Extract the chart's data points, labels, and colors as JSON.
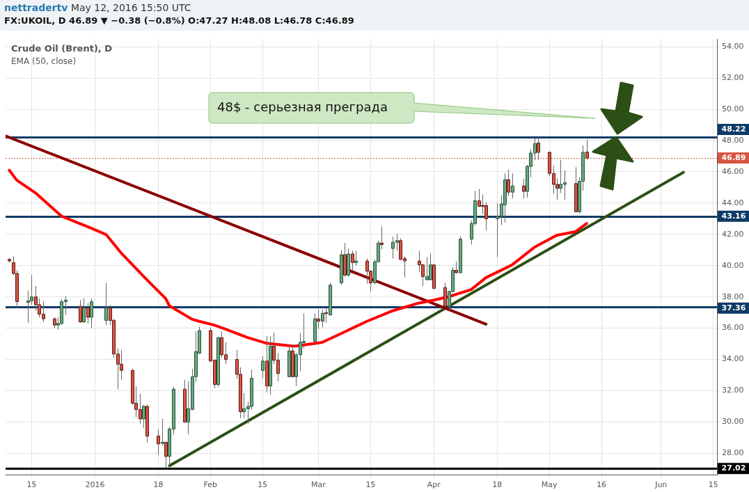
{
  "chart_data": {
    "type": "candlestick",
    "title": "FX:UKOIL, D 46.89 ▼ −0.38 (−0.8%) O:47.27 H:48.08 L:46.78 C:46.89",
    "subtitle": "Crude Oil (Brent), D",
    "annotations": [
      "nettradertv",
      "May 12, 2016 15:50 UTC",
      "EMA (50, close)",
      "48$ - серьезная преграда"
    ],
    "x": [
      "2015-12-09",
      "2015-12-10",
      "2015-12-11",
      "2015-12-14",
      "2015-12-15",
      "2015-12-16",
      "2015-12-17",
      "2015-12-18",
      "2015-12-21",
      "2015-12-22",
      "2015-12-23",
      "2015-12-24",
      "2015-12-28",
      "2015-12-29",
      "2015-12-30",
      "2015-12-31",
      "2016-01-04",
      "2016-01-05",
      "2016-01-06",
      "2016-01-07",
      "2016-01-08",
      "2016-01-11",
      "2016-01-12",
      "2016-01-13",
      "2016-01-14",
      "2016-01-15",
      "2016-01-18",
      "2016-01-19",
      "2016-01-20",
      "2016-01-21",
      "2016-01-22",
      "2016-01-25",
      "2016-01-26",
      "2016-01-27",
      "2016-01-28",
      "2016-01-29",
      "2016-02-01",
      "2016-02-02",
      "2016-02-03",
      "2016-02-04",
      "2016-02-05",
      "2016-02-08",
      "2016-02-09",
      "2016-02-10",
      "2016-02-11",
      "2016-02-12",
      "2016-02-15",
      "2016-02-16",
      "2016-02-17",
      "2016-02-18",
      "2016-02-19",
      "2016-02-22",
      "2016-02-23",
      "2016-02-24",
      "2016-02-25",
      "2016-02-26",
      "2016-02-29",
      "2016-03-01",
      "2016-03-02",
      "2016-03-03",
      "2016-03-04",
      "2016-03-07",
      "2016-03-08",
      "2016-03-09",
      "2016-03-10",
      "2016-03-11",
      "2016-03-14",
      "2016-03-15",
      "2016-03-16",
      "2016-03-17",
      "2016-03-18",
      "2016-03-21",
      "2016-03-22",
      "2016-03-23",
      "2016-03-24",
      "2016-03-28",
      "2016-03-29",
      "2016-03-30",
      "2016-03-31",
      "2016-04-01",
      "2016-04-04",
      "2016-04-05",
      "2016-04-06",
      "2016-04-07",
      "2016-04-08",
      "2016-04-11",
      "2016-04-12",
      "2016-04-13",
      "2016-04-14",
      "2016-04-15",
      "2016-04-18",
      "2016-04-19",
      "2016-04-20",
      "2016-04-21",
      "2016-04-22",
      "2016-04-25",
      "2016-04-26",
      "2016-04-27",
      "2016-04-28",
      "2016-04-29",
      "2016-05-02",
      "2016-05-03",
      "2016-05-04",
      "2016-05-05",
      "2016-05-06",
      "2016-05-09",
      "2016-05-10",
      "2016-05-11",
      "2016-05-12"
    ],
    "ohlc": [
      [
        40.4,
        40.5,
        40.2,
        40.3
      ],
      [
        40.2,
        40.6,
        39.4,
        39.5
      ],
      [
        39.5,
        39.7,
        37.3,
        37.7
      ],
      [
        37.65,
        38.4,
        36.35,
        37.75
      ],
      [
        37.75,
        39.4,
        37.5,
        38.0
      ],
      [
        38.0,
        38.7,
        37.1,
        37.5
      ],
      [
        37.5,
        37.9,
        36.7,
        36.9
      ],
      [
        36.9,
        37.7,
        36.4,
        36.6
      ],
      [
        36.6,
        36.7,
        36.0,
        36.2
      ],
      [
        36.2,
        36.7,
        35.9,
        36.3
      ],
      [
        36.3,
        37.85,
        36.2,
        37.7
      ],
      [
        37.7,
        38.05,
        36.85,
        37.8
      ],
      [
        37.4,
        37.8,
        36.35,
        36.4
      ],
      [
        36.4,
        37.9,
        36.35,
        37.3
      ],
      [
        37.3,
        37.6,
        36.3,
        36.7
      ],
      [
        36.7,
        37.9,
        36.0,
        37.7
      ],
      [
        36.5,
        38.9,
        36.2,
        37.3
      ],
      [
        37.3,
        37.5,
        36.2,
        36.5
      ],
      [
        36.5,
        36.6,
        34.1,
        34.35
      ],
      [
        34.35,
        34.7,
        32.1,
        33.7
      ],
      [
        33.7,
        34.6,
        32.7,
        33.3
      ],
      [
        33.3,
        33.4,
        31.1,
        31.2
      ],
      [
        31.2,
        32.3,
        30.3,
        30.8
      ],
      [
        30.8,
        31.8,
        29.9,
        30.2
      ],
      [
        30.2,
        31.1,
        29.6,
        31.0
      ],
      [
        31.0,
        31.1,
        28.7,
        29.1
      ],
      [
        29.1,
        29.5,
        27.9,
        28.6
      ],
      [
        28.65,
        30.2,
        28.5,
        28.7
      ],
      [
        28.7,
        28.75,
        27.05,
        27.8
      ],
      [
        27.8,
        29.7,
        27.2,
        29.55
      ],
      [
        29.55,
        32.25,
        29.2,
        32.1
      ],
      [
        32.1,
        32.7,
        29.95,
        30.0
      ],
      [
        30.0,
        32.6,
        29.2,
        30.85
      ],
      [
        30.8,
        33.4,
        30.75,
        32.9
      ],
      [
        32.9,
        35.8,
        32.55,
        34.5
      ],
      [
        34.4,
        36.1,
        34.35,
        35.85
      ],
      [
        35.85,
        36.05,
        33.85,
        33.9
      ],
      [
        33.95,
        34.0,
        32.15,
        32.4
      ],
      [
        32.4,
        35.45,
        32.25,
        35.4
      ],
      [
        35.4,
        35.8,
        34.1,
        34.3
      ],
      [
        34.3,
        35.1,
        33.7,
        34.0
      ],
      [
        34.0,
        34.6,
        32.75,
        33.05
      ],
      [
        33.05,
        33.5,
        30.25,
        30.65
      ],
      [
        30.65,
        31.85,
        30.25,
        30.85
      ],
      [
        30.85,
        31.3,
        29.9,
        31.0
      ],
      [
        31.0,
        33.35,
        30.8,
        32.8
      ],
      [
        33.3,
        34.2,
        32.8,
        33.9
      ],
      [
        33.9,
        35.5,
        31.9,
        32.3
      ],
      [
        32.3,
        35.5,
        31.75,
        34.85
      ],
      [
        34.85,
        35.7,
        33.7,
        33.95
      ],
      [
        33.95,
        34.4,
        32.6,
        33.1
      ],
      [
        32.9,
        34.95,
        32.85,
        34.55
      ],
      [
        34.55,
        34.95,
        32.85,
        32.9
      ],
      [
        32.9,
        34.4,
        32.3,
        34.3
      ],
      [
        34.3,
        35.7,
        33.25,
        35.1
      ],
      [
        35.1,
        36.95,
        34.7,
        35.15
      ],
      [
        35.15,
        36.95,
        35.1,
        36.6
      ],
      [
        36.6,
        37.2,
        35.95,
        36.45
      ],
      [
        36.45,
        37.2,
        36.05,
        36.95
      ],
      [
        37.0,
        37.3,
        36.35,
        36.95
      ],
      [
        36.85,
        38.9,
        36.8,
        38.75
      ],
      [
        38.9,
        41.0,
        38.8,
        40.7
      ],
      [
        40.7,
        41.45,
        39.3,
        39.4
      ],
      [
        39.4,
        41.1,
        39.3,
        40.75
      ],
      [
        40.75,
        40.95,
        39.7,
        40.2
      ],
      [
        40.2,
        40.95,
        40.0,
        40.3
      ],
      [
        40.3,
        40.45,
        38.85,
        39.65
      ],
      [
        39.65,
        39.7,
        38.35,
        38.9
      ],
      [
        38.9,
        40.4,
        38.85,
        40.25
      ],
      [
        40.25,
        41.6,
        40.2,
        41.45
      ],
      [
        41.45,
        42.5,
        41.05,
        41.35
      ],
      [
        41.1,
        41.85,
        40.45,
        41.5
      ],
      [
        41.5,
        42.05,
        40.95,
        41.6
      ],
      [
        41.6,
        41.75,
        40.35,
        40.4
      ],
      [
        40.45,
        40.6,
        39.25,
        40.3
      ],
      [
        40.3,
        40.95,
        39.6,
        40.05
      ],
      [
        40.05,
        40.1,
        38.7,
        39.3
      ],
      [
        39.1,
        40.55,
        39.05,
        39.3
      ],
      [
        39.1,
        40.8,
        39.05,
        40.05
      ],
      [
        40.05,
        40.1,
        38.5,
        38.55
      ],
      [
        38.6,
        38.9,
        37.35,
        37.4
      ],
      [
        37.4,
        38.4,
        37.15,
        38.35
      ],
      [
        38.35,
        39.9,
        38.3,
        39.7
      ],
      [
        39.7,
        40.25,
        39.5,
        39.55
      ],
      [
        39.55,
        41.9,
        39.5,
        41.7
      ],
      [
        41.7,
        42.9,
        41.35,
        42.7
      ],
      [
        42.7,
        44.8,
        42.55,
        44.15
      ],
      [
        44.15,
        44.9,
        43.75,
        43.8
      ],
      [
        43.85,
        44.55,
        43.3,
        43.8
      ],
      [
        43.85,
        44.05,
        42.25,
        43.0
      ],
      [
        43.0,
        44.0,
        40.55,
        43.15
      ],
      [
        43.15,
        44.5,
        42.6,
        43.95
      ],
      [
        43.9,
        45.9,
        42.75,
        45.5
      ],
      [
        45.5,
        46.15,
        44.45,
        44.7
      ],
      [
        44.7,
        45.9,
        44.3,
        45.1
      ],
      [
        45.1,
        45.55,
        44.3,
        44.75
      ],
      [
        44.75,
        46.45,
        44.35,
        46.35
      ],
      [
        46.35,
        47.45,
        45.65,
        47.2
      ],
      [
        47.2,
        48.15,
        46.75,
        47.8
      ],
      [
        47.85,
        48.25,
        46.75,
        47.25
      ],
      [
        47.25,
        47.3,
        45.7,
        45.9
      ],
      [
        45.9,
        46.4,
        44.6,
        45.2
      ],
      [
        45.2,
        45.6,
        44.2,
        44.95
      ],
      [
        44.95,
        46.75,
        44.65,
        45.2
      ],
      [
        45.2,
        46.1,
        44.2,
        45.3
      ],
      [
        45.25,
        46.3,
        43.4,
        43.45
      ],
      [
        43.45,
        45.65,
        43.35,
        45.4
      ],
      [
        45.4,
        47.7,
        44.8,
        47.25
      ],
      [
        47.27,
        48.08,
        46.78,
        46.89
      ]
    ],
    "series": [
      {
        "type": "line",
        "color": "#ff0000",
        "x": [
          "2015-12-09",
          "2015-12-11",
          "2015-12-16",
          "2015-12-23",
          "2015-12-31",
          "2016-01-04",
          "2016-01-08",
          "2016-01-14",
          "2016-01-20",
          "2016-01-21",
          "2016-01-27",
          "2016-01-29",
          "2016-02-02",
          "2016-02-05",
          "2016-02-11",
          "2016-02-16",
          "2016-02-23",
          "2016-02-24",
          "2016-03-02",
          "2016-03-08",
          "2016-03-14",
          "2016-03-21",
          "2016-03-28",
          "2016-04-01",
          "2016-04-05",
          "2016-04-11",
          "2016-04-15",
          "2016-04-22",
          "2016-04-28",
          "2016-05-04",
          "2016-05-09",
          "2016-05-12"
        ],
        "values": [
          46.1,
          45.47,
          44.66,
          43.17,
          42.4,
          41.99,
          40.82,
          39.33,
          37.89,
          37.43,
          36.58,
          36.44,
          36.2,
          35.94,
          35.4,
          35.04,
          34.86,
          34.86,
          35.09,
          35.76,
          36.44,
          37.12,
          37.61,
          37.8,
          38.02,
          38.47,
          39.24,
          40.05,
          41.18,
          41.95,
          42.17,
          42.7
        ]
      },
      {
        "type": "line",
        "color": "#8b0000",
        "x": [
          "2015-12-08",
          "2016-04-15"
        ],
        "values": [
          48.3,
          36.26
        ]
      },
      {
        "type": "line",
        "color": "#2b4f14",
        "x": [
          "2016-01-21",
          "2016-06-07"
        ],
        "values": [
          27.2,
          45.97
        ]
      }
    ],
    "ref_lines": [
      {
        "axis": "y",
        "value": 48.22,
        "label": "48.22",
        "color": "#0d3a66",
        "line_style": "solid"
      },
      {
        "axis": "y",
        "value": 43.16,
        "label": "43.16",
        "color": "#0d3a66",
        "line_style": "solid"
      },
      {
        "axis": "y",
        "value": 37.36,
        "label": "37.36",
        "color": "#0d3a66",
        "line_style": "solid"
      },
      {
        "axis": "y",
        "value": 27.02,
        "label": "27.02",
        "color": "#000000",
        "line_style": "solid"
      },
      {
        "axis": "y",
        "value": 46.89,
        "label": "46.89",
        "color": "#d75442",
        "line_style": "dotted"
      }
    ],
    "xlim": [
      "2015-12-08",
      "2016-06-16"
    ],
    "xticks": [
      {
        "value": "2015-12-15",
        "label": "15"
      },
      {
        "value": "2016-01-01",
        "label": "2016"
      },
      {
        "value": "2016-01-18",
        "label": "18"
      },
      {
        "value": "2016-02-01",
        "label": "Feb"
      },
      {
        "value": "2016-02-15",
        "label": "15"
      },
      {
        "value": "2016-03-01",
        "label": "Mar"
      },
      {
        "value": "2016-03-15",
        "label": "15"
      },
      {
        "value": "2016-04-01",
        "label": "Apr"
      },
      {
        "value": "2016-04-18",
        "label": "18"
      },
      {
        "value": "2016-05-02",
        "label": "May"
      },
      {
        "value": "2016-05-16",
        "label": "16"
      },
      {
        "value": "2016-06-01",
        "label": "Jun"
      },
      {
        "value": "2016-06-15",
        "label": "15"
      }
    ],
    "ylim": [
      26.6,
      54.5
    ],
    "yticks": [
      {
        "value": 28,
        "label": "28.00"
      },
      {
        "value": 30,
        "label": "30.00"
      },
      {
        "value": 32,
        "label": "32.00"
      },
      {
        "value": 34,
        "label": "34.00"
      },
      {
        "value": 36,
        "label": "36.00"
      },
      {
        "value": 38,
        "label": "38.00"
      },
      {
        "value": 40,
        "label": "40.00"
      },
      {
        "value": 42,
        "label": "42.00"
      },
      {
        "value": 44,
        "label": "44.00"
      },
      {
        "value": 46,
        "label": "46.00"
      },
      {
        "value": 48,
        "label": "48.00"
      },
      {
        "value": 50,
        "label": "50.00"
      },
      {
        "value": 52,
        "label": "52.00"
      },
      {
        "value": 54,
        "label": "54.00"
      }
    ],
    "grid": true,
    "legend": false
  }
}
